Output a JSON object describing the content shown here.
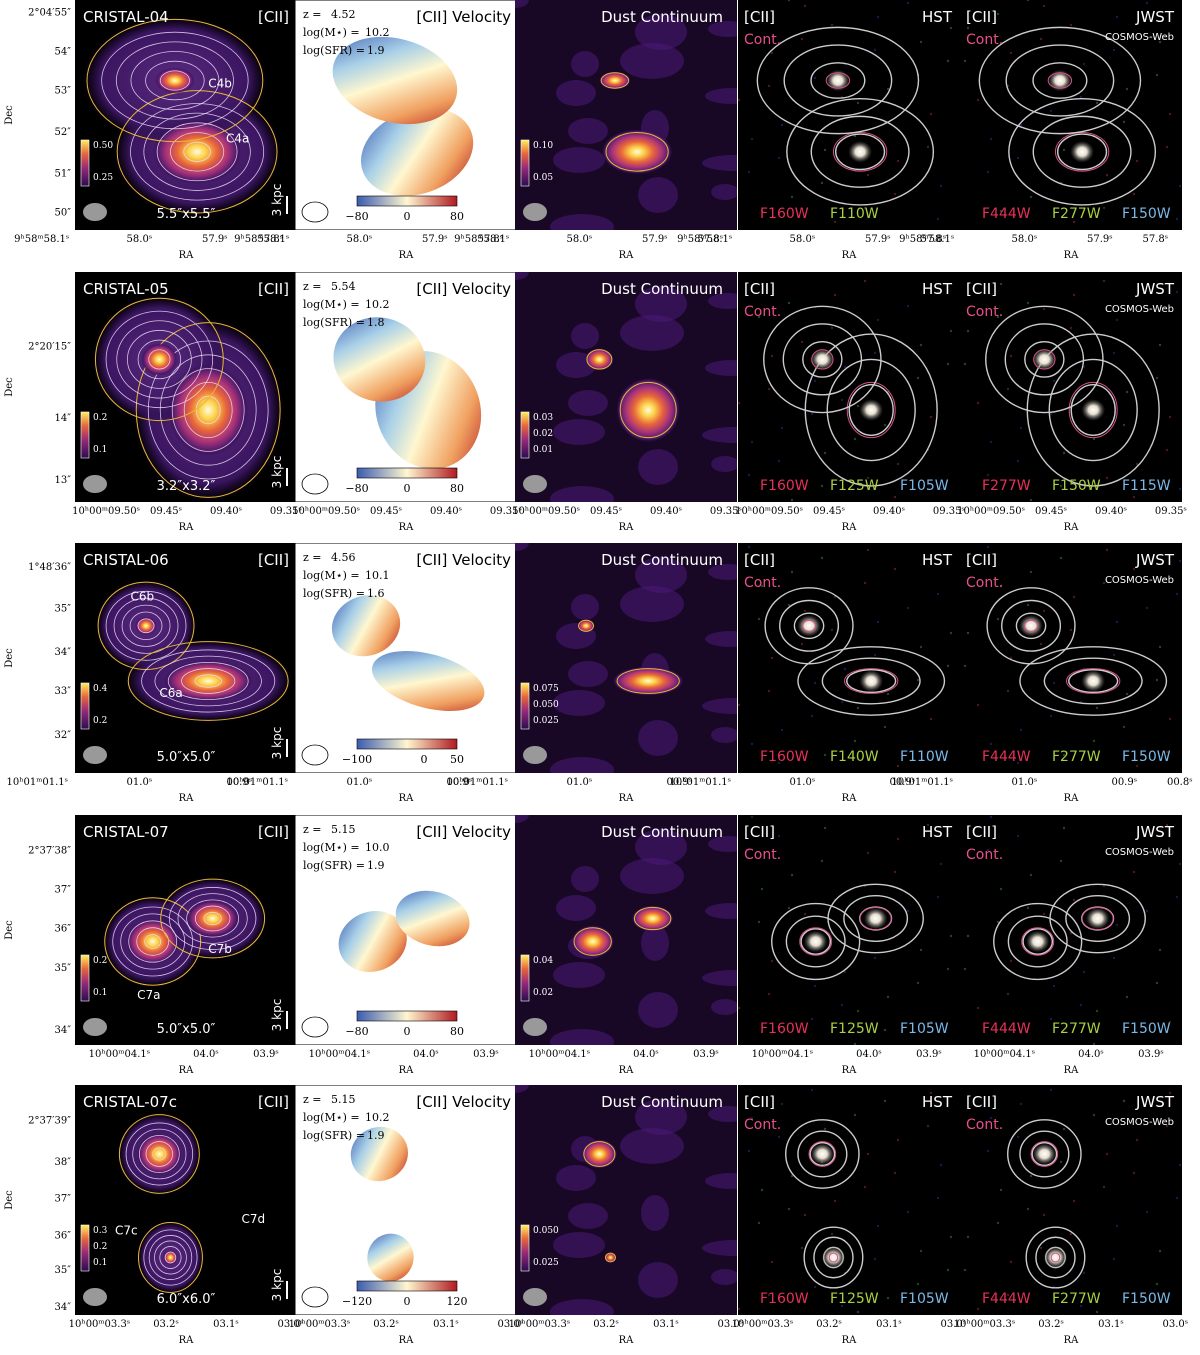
{
  "labels": {
    "cii": "[CII]",
    "velocity": "[CII] Velocity",
    "dust": "Dust Continuum",
    "cont": "Cont.",
    "hst": "HST",
    "jwst": "JWST",
    "cosmos": "COSMOS-Web",
    "ra": "RA",
    "dec": "Dec",
    "kpc": "3 kpc",
    "z": "z =",
    "mass": "log(M⋆) =",
    "sfr": "log(SFR) ="
  },
  "rows": [
    {
      "name": "CRISTAL-04",
      "dec_ticks": [
        "2°04′55″",
        "54″",
        "53″",
        "52″",
        "51″",
        "50″"
      ],
      "ra_ticks": [
        "9ʰ58ᵐ58.1ˢ",
        "58.0ˢ",
        "57.9ˢ",
        "57.8ˢ"
      ],
      "components": [
        "C4b",
        "C4a"
      ],
      "cii_colorbar": [
        "0.50",
        "0.25"
      ],
      "size": "5.5″x5.5″",
      "z": "4.52",
      "mass": "10.2",
      "sfr": "1.9",
      "velocity_colorbar": [
        "−80",
        "0",
        "80"
      ],
      "dust_colorbar": [
        "0.10",
        "0.05"
      ],
      "hst_filters": [
        "F160W",
        "F110W"
      ],
      "jwst_filters": [
        "F444W",
        "F277W",
        "F150W"
      ]
    },
    {
      "name": "CRISTAL-05",
      "dec_ticks": [
        "2°20′15″",
        "14″",
        "13″"
      ],
      "ra_ticks": [
        "10ʰ00ᵐ09.50ˢ",
        "09.45ˢ",
        "09.40ˢ",
        "09.35ˢ"
      ],
      "components": [],
      "cii_colorbar": [
        "0.2",
        "0.1"
      ],
      "size": "3.2″x3.2″",
      "z": "5.54",
      "mass": "10.2",
      "sfr": "1.8",
      "velocity_colorbar": [
        "−80",
        "0",
        "80"
      ],
      "dust_colorbar": [
        "0.03",
        "0.02",
        "0.01"
      ],
      "hst_filters": [
        "F160W",
        "F125W",
        "F105W"
      ],
      "jwst_filters": [
        "F277W",
        "F150W",
        "F115W"
      ]
    },
    {
      "name": "CRISTAL-06",
      "dec_ticks": [
        "1°48′36″",
        "35″",
        "34″",
        "33″",
        "32″"
      ],
      "ra_ticks": [
        "10ʰ01ᵐ01.1ˢ",
        "01.0ˢ",
        "00.9ˢ",
        "00.8ˢ"
      ],
      "components": [
        "C6b",
        "C6a"
      ],
      "cii_colorbar": [
        "0.4",
        "0.2"
      ],
      "size": "5.0″x5.0″",
      "z": "4.56",
      "mass": "10.1",
      "sfr": "1.6",
      "velocity_colorbar": [
        "−100",
        "0",
        "50"
      ],
      "dust_colorbar": [
        "0.075",
        "0.050",
        "0.025"
      ],
      "hst_filters": [
        "F160W",
        "F140W",
        "F110W"
      ],
      "jwst_filters": [
        "F444W",
        "F277W",
        "F150W"
      ]
    },
    {
      "name": "CRISTAL-07",
      "dec_ticks": [
        "2°37′38″",
        "37″",
        "36″",
        "35″",
        "34″"
      ],
      "ra_ticks": [
        "10ʰ00ᵐ04.1ˢ",
        "04.0ˢ",
        "03.9ˢ"
      ],
      "components": [
        "C7a",
        "C7b"
      ],
      "cii_colorbar": [
        "0.2",
        "0.1"
      ],
      "size": "5.0″x5.0″",
      "z": "5.15",
      "mass": "10.0",
      "sfr": "1.9",
      "velocity_colorbar": [
        "−80",
        "0",
        "80"
      ],
      "dust_colorbar": [
        "0.04",
        "0.02"
      ],
      "hst_filters": [
        "F160W",
        "F125W",
        "F105W"
      ],
      "jwst_filters": [
        "F444W",
        "F277W",
        "F150W"
      ]
    },
    {
      "name": "CRISTAL-07c",
      "dec_ticks": [
        "2°37′39″",
        "38″",
        "37″",
        "36″",
        "35″",
        "34″"
      ],
      "ra_ticks": [
        "10ʰ00ᵐ03.3ˢ",
        "03.2ˢ",
        "03.1ˢ",
        "03.0ˢ"
      ],
      "components": [
        "C7c",
        "C7d"
      ],
      "cii_colorbar": [
        "0.3",
        "0.2",
        "0.1"
      ],
      "size": "6.0″x6.0″",
      "z": "5.15",
      "mass": "10.2",
      "sfr": "1.9",
      "velocity_colorbar": [
        "−120",
        "0",
        "120"
      ],
      "dust_colorbar": [
        "0.050",
        "0.025"
      ],
      "hst_filters": [
        "F160W",
        "F125W",
        "F105W"
      ],
      "jwst_filters": [
        "F444W",
        "F277W",
        "F150W"
      ]
    }
  ]
}
